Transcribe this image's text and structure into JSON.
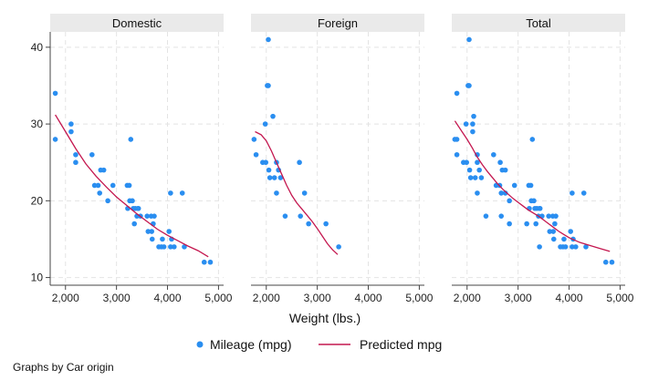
{
  "chart_data": {
    "type": "scatter",
    "xlabel": "Weight (lbs.)",
    "note": "Graphs by Car origin",
    "xlim": [
      1700,
      5100
    ],
    "ylim": [
      9,
      42
    ],
    "x_ticks": [
      2000,
      3000,
      4000,
      5000
    ],
    "x_tick_labels": [
      "2,000",
      "3,000",
      "4,000",
      "5,000"
    ],
    "y_ticks": [
      10,
      20,
      30,
      40
    ],
    "y_tick_labels": [
      "10",
      "20",
      "30",
      "40"
    ],
    "grid": true,
    "legend_position": "bottom",
    "legend": {
      "scatter_label": "Mileage (mpg)",
      "line_label": "Predicted mpg"
    },
    "colors": {
      "scatter": "#2a8ef0",
      "line": "#c4174f",
      "strip_bg": "#eaeaea",
      "grid": "#e4e4e4",
      "axis": "#444444"
    },
    "panels": [
      {
        "title": "Domestic",
        "scatter": [
          [
            1800,
            34
          ],
          [
            1800,
            28
          ],
          [
            2110,
            30
          ],
          [
            2110,
            29
          ],
          [
            2200,
            26
          ],
          [
            2200,
            25
          ],
          [
            2520,
            26
          ],
          [
            2570,
            22
          ],
          [
            2640,
            22
          ],
          [
            2670,
            21
          ],
          [
            2690,
            24
          ],
          [
            2750,
            24
          ],
          [
            2830,
            20
          ],
          [
            2930,
            22
          ],
          [
            3210,
            22
          ],
          [
            3220,
            19
          ],
          [
            3250,
            22
          ],
          [
            3260,
            20
          ],
          [
            3280,
            28
          ],
          [
            3310,
            20
          ],
          [
            3330,
            19
          ],
          [
            3350,
            17
          ],
          [
            3370,
            19
          ],
          [
            3400,
            18
          ],
          [
            3420,
            19
          ],
          [
            3430,
            19
          ],
          [
            3470,
            18
          ],
          [
            3600,
            18
          ],
          [
            3620,
            16
          ],
          [
            3680,
            18
          ],
          [
            3690,
            16
          ],
          [
            3700,
            15
          ],
          [
            3720,
            17
          ],
          [
            3740,
            18
          ],
          [
            3830,
            14
          ],
          [
            3880,
            14
          ],
          [
            3900,
            15
          ],
          [
            3930,
            14
          ],
          [
            4030,
            16
          ],
          [
            4060,
            14
          ],
          [
            4060,
            21
          ],
          [
            4080,
            15
          ],
          [
            4130,
            14
          ],
          [
            4290,
            21
          ],
          [
            4330,
            14
          ],
          [
            4720,
            12
          ],
          [
            4840,
            12
          ]
        ],
        "fit": [
          [
            1800,
            31.2
          ],
          [
            2000,
            29.0
          ],
          [
            2200,
            26.8
          ],
          [
            2400,
            24.8
          ],
          [
            2600,
            23.2
          ],
          [
            2800,
            21.8
          ],
          [
            3000,
            20.5
          ],
          [
            3200,
            19.4
          ],
          [
            3400,
            18.3
          ],
          [
            3600,
            17.3
          ],
          [
            3800,
            16.3
          ],
          [
            4000,
            15.5
          ],
          [
            4200,
            14.8
          ],
          [
            4400,
            14.1
          ],
          [
            4600,
            13.5
          ],
          [
            4800,
            12.7
          ]
        ]
      },
      {
        "title": "Foreign",
        "scatter": [
          [
            1760,
            28
          ],
          [
            1800,
            26
          ],
          [
            1930,
            25
          ],
          [
            1980,
            30
          ],
          [
            1990,
            25
          ],
          [
            2020,
            35
          ],
          [
            2040,
            35
          ],
          [
            2040,
            41
          ],
          [
            2050,
            24
          ],
          [
            2070,
            23
          ],
          [
            2130,
            31
          ],
          [
            2160,
            23
          ],
          [
            2200,
            25
          ],
          [
            2200,
            21
          ],
          [
            2240,
            24
          ],
          [
            2280,
            23
          ],
          [
            2370,
            18
          ],
          [
            2650,
            25
          ],
          [
            2670,
            18
          ],
          [
            2750,
            21
          ],
          [
            2830,
            17
          ],
          [
            3170,
            17
          ],
          [
            3420,
            14
          ]
        ],
        "fit": [
          [
            1780,
            29.0
          ],
          [
            1900,
            28.6
          ],
          [
            2000,
            27.8
          ],
          [
            2100,
            26.5
          ],
          [
            2200,
            25.0
          ],
          [
            2300,
            23.5
          ],
          [
            2400,
            22.0
          ],
          [
            2500,
            20.7
          ],
          [
            2600,
            19.7
          ],
          [
            2700,
            18.9
          ],
          [
            2800,
            18.1
          ],
          [
            2900,
            17.3
          ],
          [
            3000,
            16.4
          ],
          [
            3100,
            15.4
          ],
          [
            3200,
            14.4
          ],
          [
            3300,
            13.6
          ],
          [
            3400,
            13.0
          ]
        ]
      },
      {
        "title": "Total",
        "scatter": [
          [
            1760,
            28
          ],
          [
            1800,
            34
          ],
          [
            1800,
            28
          ],
          [
            1800,
            26
          ],
          [
            1930,
            25
          ],
          [
            1980,
            30
          ],
          [
            1990,
            25
          ],
          [
            2020,
            35
          ],
          [
            2040,
            35
          ],
          [
            2040,
            41
          ],
          [
            2050,
            24
          ],
          [
            2070,
            23
          ],
          [
            2110,
            30
          ],
          [
            2110,
            29
          ],
          [
            2130,
            31
          ],
          [
            2160,
            23
          ],
          [
            2200,
            26
          ],
          [
            2200,
            25
          ],
          [
            2200,
            21
          ],
          [
            2240,
            24
          ],
          [
            2280,
            23
          ],
          [
            2370,
            18
          ],
          [
            2520,
            26
          ],
          [
            2570,
            22
          ],
          [
            2640,
            22
          ],
          [
            2650,
            25
          ],
          [
            2670,
            21
          ],
          [
            2670,
            18
          ],
          [
            2690,
            24
          ],
          [
            2750,
            24
          ],
          [
            2750,
            21
          ],
          [
            2830,
            20
          ],
          [
            2830,
            17
          ],
          [
            2930,
            22
          ],
          [
            3170,
            17
          ],
          [
            3210,
            22
          ],
          [
            3220,
            19
          ],
          [
            3250,
            22
          ],
          [
            3260,
            20
          ],
          [
            3280,
            28
          ],
          [
            3310,
            20
          ],
          [
            3330,
            19
          ],
          [
            3350,
            17
          ],
          [
            3370,
            19
          ],
          [
            3400,
            18
          ],
          [
            3420,
            19
          ],
          [
            3420,
            14
          ],
          [
            3430,
            19
          ],
          [
            3470,
            18
          ],
          [
            3600,
            18
          ],
          [
            3620,
            16
          ],
          [
            3680,
            18
          ],
          [
            3690,
            16
          ],
          [
            3700,
            15
          ],
          [
            3720,
            17
          ],
          [
            3740,
            18
          ],
          [
            3830,
            14
          ],
          [
            3880,
            14
          ],
          [
            3900,
            15
          ],
          [
            3930,
            14
          ],
          [
            4030,
            16
          ],
          [
            4060,
            14
          ],
          [
            4060,
            21
          ],
          [
            4080,
            15
          ],
          [
            4130,
            14
          ],
          [
            4290,
            21
          ],
          [
            4330,
            14
          ],
          [
            4720,
            12
          ],
          [
            4840,
            12
          ]
        ],
        "fit": [
          [
            1760,
            30.4
          ],
          [
            1900,
            29.0
          ],
          [
            2000,
            28.0
          ],
          [
            2100,
            26.9
          ],
          [
            2200,
            25.7
          ],
          [
            2300,
            24.7
          ],
          [
            2400,
            23.8
          ],
          [
            2500,
            23.0
          ],
          [
            2600,
            22.2
          ],
          [
            2700,
            21.5
          ],
          [
            2800,
            20.9
          ],
          [
            2900,
            20.3
          ],
          [
            3000,
            19.8
          ],
          [
            3100,
            19.3
          ],
          [
            3200,
            18.8
          ],
          [
            3300,
            18.4
          ],
          [
            3400,
            18.0
          ],
          [
            3500,
            17.5
          ],
          [
            3600,
            17.0
          ],
          [
            3700,
            16.5
          ],
          [
            3800,
            16.0
          ],
          [
            3900,
            15.6
          ],
          [
            4000,
            15.2
          ],
          [
            4200,
            14.6
          ],
          [
            4400,
            14.2
          ],
          [
            4600,
            13.8
          ],
          [
            4800,
            13.4
          ]
        ]
      }
    ]
  }
}
